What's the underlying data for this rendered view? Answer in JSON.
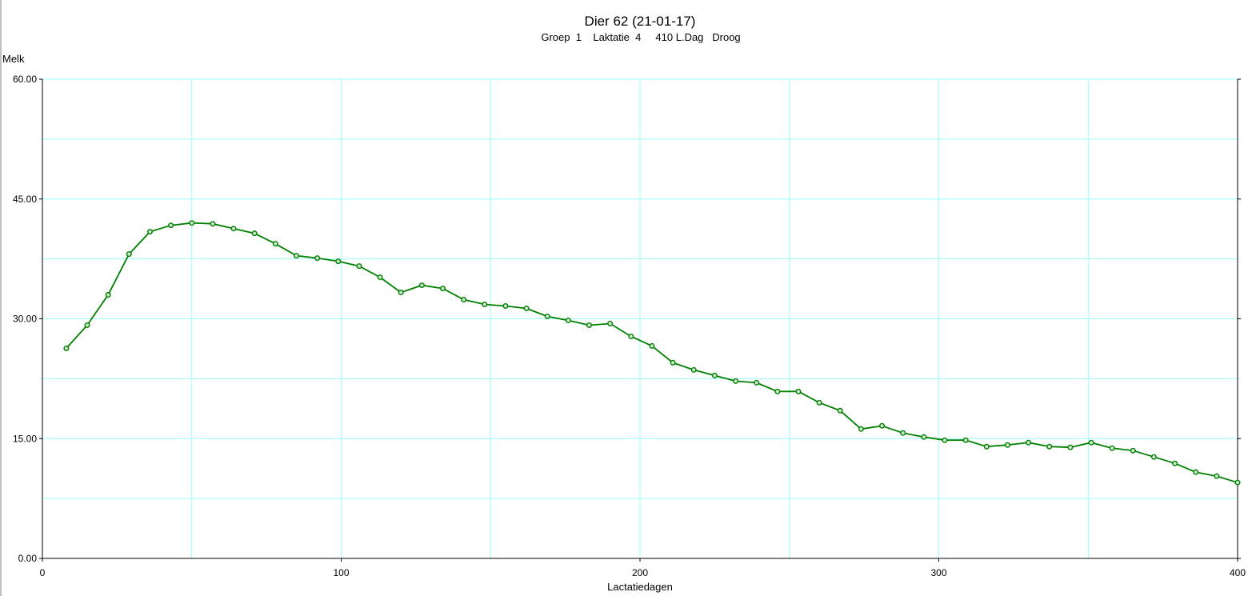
{
  "chart_data": {
    "type": "line",
    "title": "Dier 62  (21-01-17)",
    "subtitle": "Groep  1    Laktatie  4     410 L.Dag   Droog",
    "xlabel": "Lactatiedagen",
    "ylabel": "Melk",
    "xlim": [
      0,
      400
    ],
    "ylim": [
      0,
      60
    ],
    "xticks": [
      0,
      100,
      200,
      300,
      400
    ],
    "xtick_labels": [
      "0",
      "100",
      "200",
      "300",
      "400"
    ],
    "yticks": [
      0,
      15,
      30,
      45,
      60
    ],
    "ytick_labels": [
      "0.00",
      "15.00",
      "30.00",
      "45.00",
      "60.00"
    ],
    "x_gridlines": [
      50,
      100,
      150,
      200,
      250,
      300,
      350
    ],
    "y_gridlines": [
      7.5,
      15,
      22.5,
      30,
      37.5,
      45,
      52.5
    ],
    "grid": true,
    "line_color": "#008000",
    "grid_color": "#99ffff",
    "series": [
      {
        "x": [
          8,
          15,
          22,
          29,
          36,
          43,
          50,
          57,
          64,
          71,
          78,
          85,
          92,
          99,
          106,
          113,
          120,
          127,
          134,
          141,
          148,
          155,
          162,
          169,
          176,
          183,
          190,
          197,
          204,
          211,
          218,
          225,
          232,
          239,
          246,
          253,
          260,
          267,
          274,
          281,
          288,
          295,
          302,
          309,
          316,
          323,
          330,
          337,
          344,
          351,
          358,
          365,
          372,
          379,
          386,
          393,
          400
        ],
        "values": [
          26.3,
          29.2,
          33.0,
          38.1,
          40.9,
          41.7,
          42.0,
          41.9,
          41.3,
          40.7,
          39.4,
          37.9,
          37.6,
          37.2,
          36.6,
          35.2,
          33.3,
          34.2,
          33.8,
          32.4,
          31.8,
          31.6,
          31.3,
          30.3,
          29.8,
          29.2,
          29.4,
          27.8,
          26.6,
          24.5,
          23.6,
          22.9,
          22.2,
          22.0,
          20.9,
          20.9,
          19.5,
          18.5,
          16.2,
          16.6,
          15.7,
          15.2,
          14.8,
          14.8,
          14.0,
          14.2,
          14.5,
          14.0,
          13.9,
          14.5,
          13.8,
          13.5,
          12.7,
          11.9,
          10.8,
          10.3,
          9.5
        ]
      }
    ]
  }
}
